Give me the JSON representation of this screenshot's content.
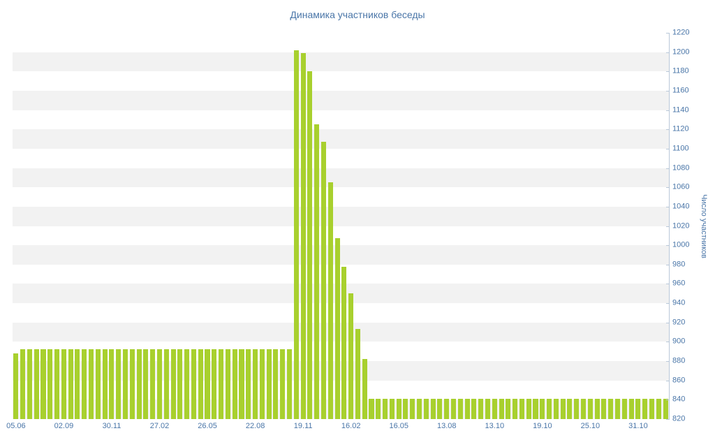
{
  "chart_data": {
    "type": "bar",
    "title": "Динамика участников беседы",
    "ylabel": "Число участников",
    "xlabel": "",
    "ylim": [
      820,
      1220
    ],
    "ytick_step": 20,
    "yticks": [
      820,
      840,
      860,
      880,
      900,
      920,
      940,
      960,
      980,
      1000,
      1020,
      1040,
      1060,
      1080,
      1100,
      1120,
      1140,
      1160,
      1180,
      1200,
      1220
    ],
    "bar_color": "#a8d02e",
    "band_color": "#f2f2f2",
    "text_color": "#4a76a8",
    "axis_color": "#b9c8d9",
    "legend": "none",
    "grid": "striped-horizontal-bands",
    "values": [
      888,
      892,
      892,
      892,
      892,
      892,
      892,
      892,
      892,
      892,
      892,
      892,
      892,
      892,
      892,
      892,
      892,
      892,
      892,
      892,
      892,
      892,
      892,
      892,
      892,
      892,
      892,
      892,
      892,
      892,
      892,
      892,
      892,
      892,
      892,
      892,
      892,
      892,
      892,
      892,
      892,
      1202,
      1199,
      1180,
      1125,
      1107,
      1065,
      1007,
      978,
      950,
      913,
      882,
      841,
      841,
      841,
      841,
      841,
      841,
      841,
      841,
      841,
      841,
      841,
      841,
      841,
      841,
      841,
      841,
      841,
      841,
      841,
      841,
      841,
      841,
      841,
      841,
      841,
      841,
      841,
      841,
      841,
      841,
      841,
      841,
      841,
      841,
      841,
      841,
      841,
      841,
      841,
      841,
      841,
      841,
      841,
      841
    ],
    "x_labels": [
      {
        "index": 0,
        "label": "05.06"
      },
      {
        "index": 7,
        "label": "02.09"
      },
      {
        "index": 14,
        "label": "30.11"
      },
      {
        "index": 21,
        "label": "27.02"
      },
      {
        "index": 28,
        "label": "26.05"
      },
      {
        "index": 35,
        "label": "22.08"
      },
      {
        "index": 42,
        "label": "19.11"
      },
      {
        "index": 49,
        "label": "16.02"
      },
      {
        "index": 56,
        "label": "16.05"
      },
      {
        "index": 63,
        "label": "13.08"
      },
      {
        "index": 70,
        "label": "13.10"
      },
      {
        "index": 77,
        "label": "19.10"
      },
      {
        "index": 84,
        "label": "25.10"
      },
      {
        "index": 91,
        "label": "31.10"
      }
    ]
  }
}
